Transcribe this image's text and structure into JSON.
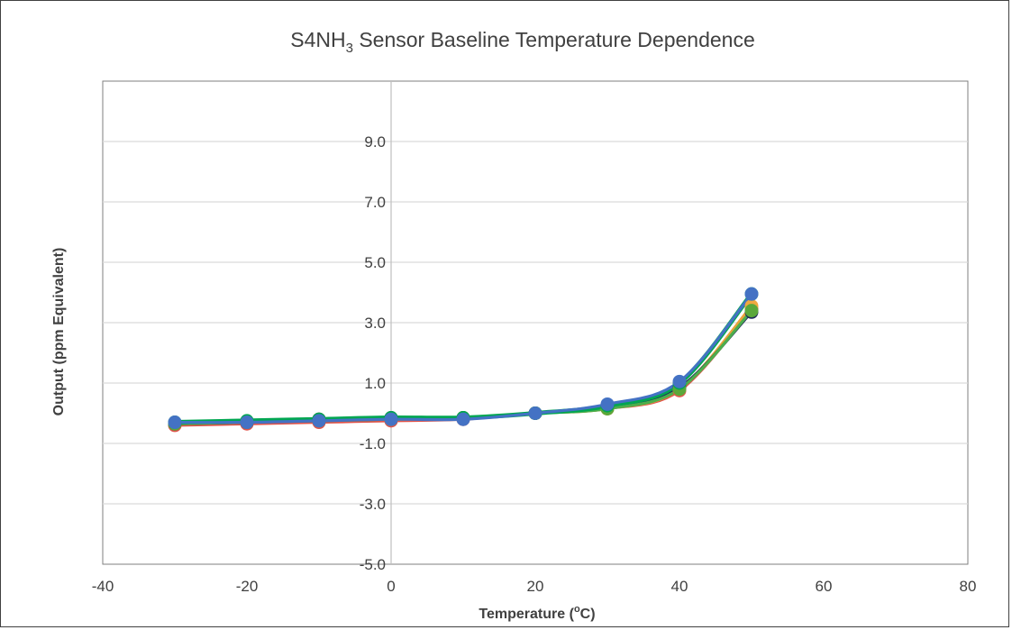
{
  "chart_data": {
    "type": "line",
    "title_main": "S4NH",
    "title_sub": "3",
    "title_rest": " Sensor Baseline Temperature Dependence",
    "xlabel_main": "Temperature (",
    "xlabel_sup": "o",
    "xlabel_rest": "C)",
    "ylabel": "Output (ppm Equivalent)",
    "xlim": [
      -40,
      80
    ],
    "ylim": [
      -5,
      11
    ],
    "xticks": [
      -40,
      -20,
      0,
      20,
      40,
      60,
      80
    ],
    "xtick_labels": [
      "-40",
      "-20",
      "0",
      "20",
      "40",
      "60",
      "80"
    ],
    "yticks": [
      -5,
      -3,
      -1,
      1,
      3,
      5,
      7,
      9
    ],
    "ytick_labels": [
      "-5.0",
      "-3.0",
      "-1.0",
      "1.0",
      "3.0",
      "5.0",
      "7.0",
      "9.0"
    ],
    "grid": {
      "horizontal": true,
      "vertical": false
    },
    "legend": "none",
    "x": [
      -30,
      -20,
      -10,
      0,
      10,
      20,
      30,
      40,
      50
    ],
    "series": [
      {
        "color": "#e0534a",
        "marker": "#e0534a",
        "values": [
          -0.4,
          -0.35,
          -0.3,
          -0.25,
          -0.2,
          0.0,
          0.15,
          0.75,
          3.45
        ]
      },
      {
        "color": "#e8a33a",
        "marker": "#f0a840",
        "values": [
          -0.35,
          -0.3,
          -0.2,
          -0.2,
          -0.15,
          0.0,
          0.15,
          0.8,
          3.55
        ]
      },
      {
        "color": "#1f2a5a",
        "marker": "#1f2a5a",
        "values": [
          -0.35,
          -0.3,
          -0.2,
          -0.15,
          -0.15,
          0.0,
          0.2,
          0.85,
          3.35
        ]
      },
      {
        "color": "#4cae4c",
        "marker": "#5aa83a",
        "values": [
          -0.35,
          -0.3,
          -0.25,
          -0.2,
          -0.15,
          0.0,
          0.15,
          0.8,
          3.4
        ]
      },
      {
        "color": "#00a651",
        "marker": "#00a651",
        "values": [
          -0.3,
          -0.25,
          -0.2,
          -0.15,
          -0.15,
          0.0,
          0.25,
          1.0,
          3.95
        ]
      },
      {
        "color": "#4472c4",
        "marker": "#4472c4",
        "values": [
          -0.3,
          -0.3,
          -0.25,
          -0.2,
          -0.2,
          0.0,
          0.3,
          1.05,
          3.95
        ]
      }
    ]
  }
}
